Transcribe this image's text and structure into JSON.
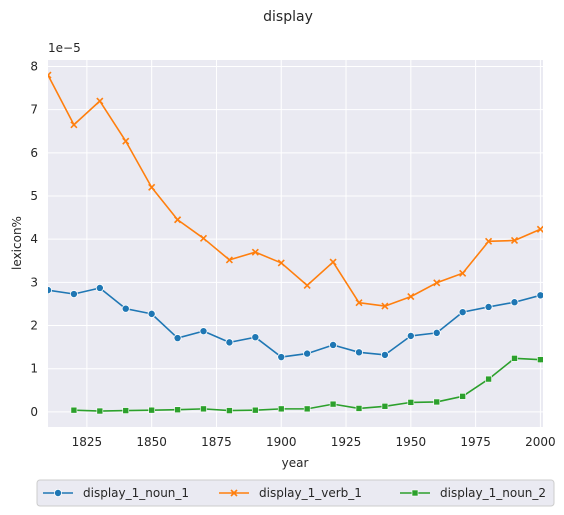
{
  "chart_data": {
    "type": "line",
    "title": "display",
    "xlabel": "year",
    "ylabel": "lexicon%",
    "y_offset_label": "1e−5",
    "xlim": [
      1810,
      2001
    ],
    "ylim": [
      -0.35,
      8.15
    ],
    "x_ticks": [
      1825,
      1850,
      1875,
      1900,
      1925,
      1950,
      1975,
      2000
    ],
    "y_ticks": [
      0,
      1,
      2,
      3,
      4,
      5,
      6,
      7,
      8
    ],
    "grid": true,
    "legend_position": "bottom-center",
    "background": "#eaeaf2",
    "series": [
      {
        "name": "display_1_noun_1",
        "color": "#1f77b4",
        "marker": "circle",
        "x": [
          1810,
          1820,
          1830,
          1840,
          1850,
          1860,
          1870,
          1880,
          1890,
          1900,
          1910,
          1920,
          1930,
          1940,
          1950,
          1960,
          1970,
          1980,
          1990,
          2000
        ],
        "y": [
          2.82,
          2.73,
          2.87,
          2.39,
          2.27,
          1.71,
          1.87,
          1.61,
          1.73,
          1.27,
          1.35,
          1.55,
          1.38,
          1.32,
          1.76,
          1.83,
          2.31,
          2.43,
          2.54,
          2.7
        ]
      },
      {
        "name": "display_1_verb_1",
        "color": "#ff7f0e",
        "marker": "x",
        "x": [
          1810,
          1820,
          1830,
          1840,
          1850,
          1860,
          1870,
          1880,
          1890,
          1900,
          1910,
          1920,
          1930,
          1940,
          1950,
          1960,
          1970,
          1980,
          1990,
          2000
        ],
        "y": [
          7.8,
          6.65,
          7.2,
          6.27,
          5.2,
          4.45,
          4.02,
          3.52,
          3.7,
          3.45,
          2.93,
          3.47,
          2.53,
          2.45,
          2.67,
          2.99,
          3.21,
          3.95,
          3.97,
          4.23
        ]
      },
      {
        "name": "display_1_noun_2",
        "color": "#2ca02c",
        "marker": "square",
        "x": [
          1820,
          1830,
          1840,
          1850,
          1860,
          1870,
          1880,
          1890,
          1900,
          1910,
          1920,
          1930,
          1940,
          1950,
          1960,
          1970,
          1980,
          1990,
          2000
        ],
        "y": [
          0.04,
          0.02,
          0.03,
          0.04,
          0.05,
          0.07,
          0.03,
          0.04,
          0.07,
          0.07,
          0.18,
          0.08,
          0.13,
          0.22,
          0.23,
          0.36,
          0.76,
          1.24,
          1.21
        ]
      }
    ]
  }
}
